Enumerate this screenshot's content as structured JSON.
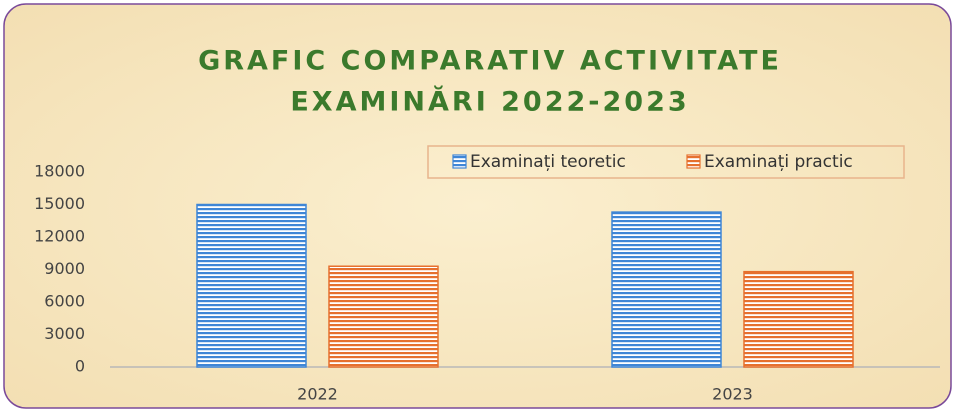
{
  "chart_data": {
    "type": "bar",
    "title": [
      "GRAFIC COMPARATIV ACTIVITATE",
      "EXAMINĂRI 2022-2023"
    ],
    "categories": [
      "2022",
      "2023"
    ],
    "series": [
      {
        "name": "Examinați teoretic",
        "color": "#3f86d6",
        "values": [
          15000,
          14300
        ]
      },
      {
        "name": "Examinați practic",
        "color": "#e6702e",
        "values": [
          9300,
          8800
        ]
      }
    ],
    "ylim": [
      0,
      18000
    ],
    "yticks": [
      0,
      3000,
      6000,
      9000,
      12000,
      15000,
      18000
    ],
    "grid": false,
    "legend": "top-right"
  }
}
